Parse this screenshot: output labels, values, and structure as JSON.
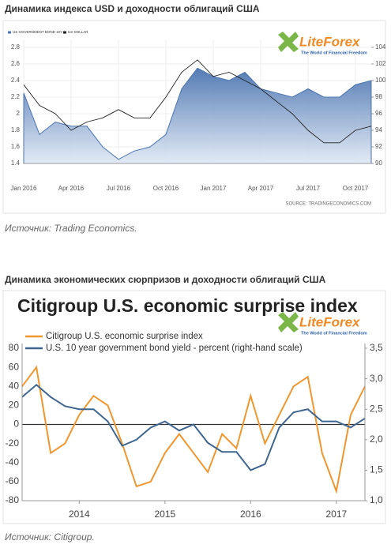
{
  "headings": [
    "Динамика индекса USD и доходности облигаций США",
    "Динамика экономических сюрпризов и доходности облигаций США"
  ],
  "sources": [
    "Источник: Trading Economics.",
    "Источник: Citigroup."
  ],
  "logo": {
    "name": "LiteForex",
    "tagline": "The World of Financial Freedom"
  },
  "chart_data": [
    {
      "type": "line",
      "source_note": "SOURCE: TRADINGECONOMICS.COM",
      "categories": [
        "Jan 2016",
        null,
        null,
        "Apr 2016",
        null,
        null,
        "Jul 2016",
        null,
        null,
        "Oct 2016",
        null,
        null,
        "Jan 2017",
        null,
        null,
        "Apr 2017",
        null,
        null,
        "Jul 2017",
        null,
        null,
        "Oct 2017",
        null
      ],
      "series": [
        {
          "name": "US GOVERNMENT BOND 10Y",
          "color": "#4a74b0",
          "style": "area",
          "values": [
            2.25,
            1.75,
            1.9,
            1.85,
            1.85,
            1.6,
            1.45,
            1.55,
            1.6,
            1.75,
            2.3,
            2.55,
            2.45,
            2.4,
            2.5,
            2.3,
            2.25,
            2.2,
            2.3,
            2.2,
            2.2,
            2.35,
            2.4
          ]
        },
        {
          "name": "US DOLLAR",
          "color": "#222222",
          "style": "line",
          "axis": "y2",
          "values": [
            99.5,
            97,
            96,
            94,
            95,
            95.5,
            96.5,
            95.5,
            95.5,
            98,
            101,
            102.5,
            100.5,
            101,
            100,
            99,
            97.5,
            96,
            94,
            92.5,
            92.5,
            94,
            94.5
          ]
        }
      ],
      "ylim": [
        1.4,
        2.8
      ],
      "yticks": [
        1.4,
        1.6,
        1.8,
        2,
        2.2,
        2.4,
        2.6,
        2.8
      ],
      "y2lim": [
        90,
        104
      ],
      "y2ticks": [
        90,
        92,
        94,
        96,
        98,
        100,
        102,
        104
      ],
      "grid": true
    },
    {
      "type": "line",
      "title": "Citigroup U.S. economic surprise index",
      "categories": [
        null,
        null,
        null,
        null,
        "2014",
        null,
        null,
        null,
        null,
        null,
        "2015",
        null,
        null,
        null,
        null,
        null,
        "2016",
        null,
        null,
        null,
        null,
        null,
        "2017",
        null,
        null
      ],
      "series": [
        {
          "name": "Citigroup U.S. economic surprise index",
          "color": "#f0962e",
          "style": "line",
          "values": [
            40,
            60,
            -30,
            -20,
            10,
            30,
            20,
            -20,
            -65,
            -60,
            -30,
            -10,
            -30,
            -50,
            -10,
            -25,
            30,
            -20,
            10,
            40,
            50,
            -30,
            -70,
            10,
            40
          ]
        },
        {
          "name": "U.S. 10 year government bond yield - percent (right-hand scale)",
          "color": "#3e6690",
          "style": "line",
          "axis": "y2",
          "values": [
            2.7,
            2.9,
            2.7,
            2.55,
            2.5,
            2.5,
            2.3,
            1.9,
            2.0,
            2.2,
            2.3,
            2.15,
            2.25,
            1.95,
            1.8,
            1.8,
            1.5,
            1.6,
            2.2,
            2.45,
            2.5,
            2.3,
            2.3,
            2.2,
            2.35
          ]
        }
      ],
      "ylim": [
        -80,
        80
      ],
      "yticks": [
        -80,
        -60,
        -40,
        -20,
        0,
        20,
        40,
        60,
        80
      ],
      "y2lim": [
        1.0,
        3.5
      ],
      "y2ticks": [
        {
          "value": 1.0,
          "label": "1,0"
        },
        {
          "value": 1.5,
          "label": "1,5"
        },
        {
          "value": 2.0,
          "label": "2,0"
        },
        {
          "value": 2.5,
          "label": "2,5"
        },
        {
          "value": 3.0,
          "label": "3,0"
        },
        {
          "value": 3.5,
          "label": "3,5"
        }
      ],
      "grid": false,
      "zero_line": true
    }
  ]
}
